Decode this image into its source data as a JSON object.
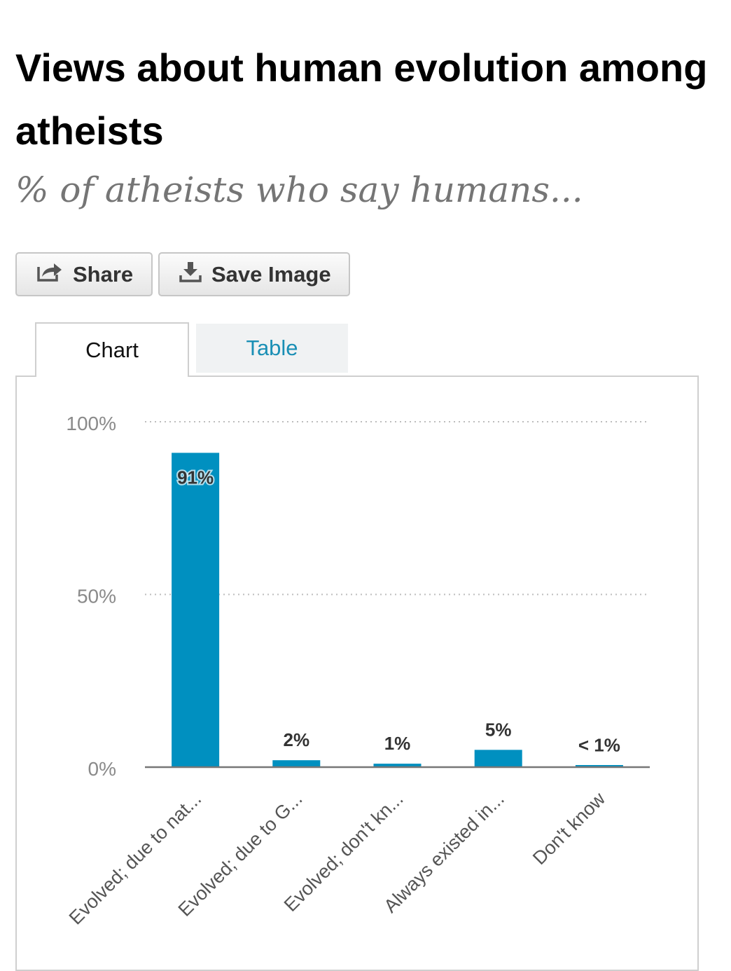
{
  "header": {
    "title": "Views about human evolution among atheists",
    "subtitle": "% of atheists who say humans..."
  },
  "toolbar": {
    "share_label": "Share",
    "share_icon": "share-icon",
    "save_label": "Save Image",
    "save_icon": "download-icon"
  },
  "tabs": [
    {
      "label": "Chart",
      "active": true
    },
    {
      "label": "Table",
      "active": false
    }
  ],
  "colors": {
    "bar": "#0090c0",
    "tab_link": "#1a8fb5",
    "axis_text": "#8a8a8a",
    "category_text": "#555555"
  },
  "chart_data": {
    "type": "bar",
    "title": "Views about human evolution among atheists",
    "subtitle": "% of atheists who say humans...",
    "categories": [
      "Evolved; due to nat...",
      "Evolved; due to G...",
      "Evolved; don't kn...",
      "Always existed in...",
      "Don't know"
    ],
    "values": [
      91,
      2,
      1,
      5,
      0.5
    ],
    "data_labels": [
      "91%",
      "2%",
      "1%",
      "5%",
      "< 1%"
    ],
    "yticks": [
      "0%",
      "50%",
      "100%"
    ],
    "ytick_values": [
      0,
      50,
      100
    ],
    "ylim": [
      0,
      100
    ],
    "grid": "dotted horizontal",
    "legend": "none",
    "xlabel": "",
    "ylabel": ""
  }
}
